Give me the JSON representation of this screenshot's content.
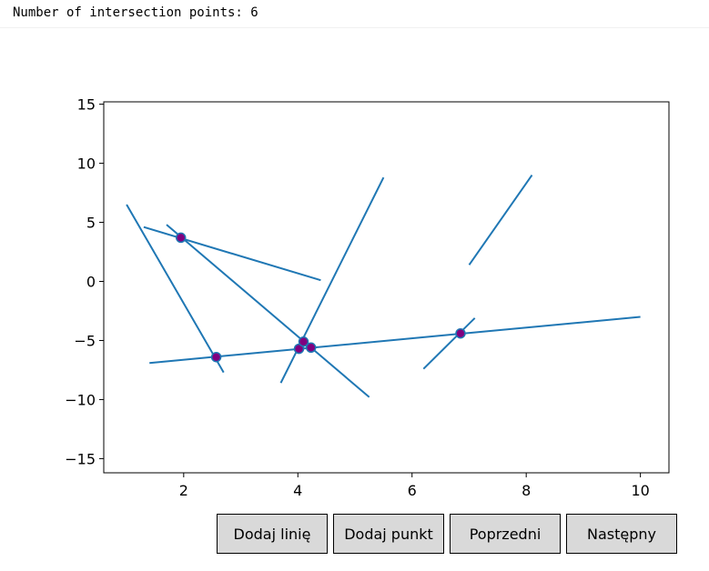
{
  "status": {
    "text": "Number of intersection points: 6"
  },
  "buttons": {
    "add_line": "Dodaj linię",
    "add_point": "Dodaj punkt",
    "previous": "Poprzedni",
    "next": "Następny"
  },
  "colors": {
    "line": "#1f77b4",
    "point_fill": "#800080",
    "point_edge": "#1f77b4"
  },
  "chart_data": {
    "type": "line",
    "title": "",
    "xlabel": "",
    "ylabel": "",
    "xlim": [
      0.6,
      10.5
    ],
    "ylim": [
      -16.2,
      15.2
    ],
    "xticks": [
      2,
      4,
      6,
      8,
      10
    ],
    "yticks": [
      15,
      10,
      5,
      0,
      -5,
      -10,
      -15
    ],
    "grid": false,
    "series": [
      {
        "x": [
          1.0,
          2.7
        ],
        "y": [
          6.5,
          -7.7
        ]
      },
      {
        "x": [
          1.3,
          4.4
        ],
        "y": [
          4.6,
          0.1
        ]
      },
      {
        "x": [
          1.7,
          5.25
        ],
        "y": [
          4.8,
          -9.8
        ]
      },
      {
        "x": [
          3.7,
          5.5
        ],
        "y": [
          -8.6,
          8.8
        ]
      },
      {
        "x": [
          1.4,
          10.0
        ],
        "y": [
          -6.9,
          -3.0
        ]
      },
      {
        "x": [
          6.2,
          7.1
        ],
        "y": [
          -7.4,
          -3.1
        ]
      },
      {
        "x": [
          7.0,
          8.1
        ],
        "y": [
          1.4,
          9.0
        ]
      }
    ],
    "intersections": {
      "x": [
        1.95,
        2.57,
        4.02,
        4.1,
        4.23,
        6.85
      ],
      "y": [
        3.7,
        -6.4,
        -5.7,
        -5.1,
        -5.6,
        -4.4
      ]
    }
  }
}
